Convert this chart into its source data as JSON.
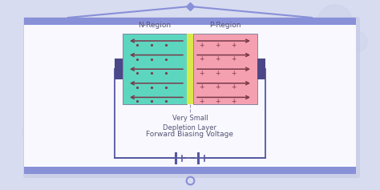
{
  "bg_color": "#d8dcf0",
  "whiteboard_color": "#f8f8fe",
  "whiteboard_border": "#c8cce8",
  "n_region_color": "#5dd6c0",
  "p_region_color": "#f5a0b0",
  "depletion_color": "#d8e84a",
  "connector_color": "#4a4888",
  "arrow_color": "#7a3a4a",
  "circuit_color": "#5558a0",
  "battery_color": "#5558a0",
  "n_label": "N-Region",
  "p_label": "P-Region",
  "depletion_label": "Very Small\nDepletion Layer",
  "voltage_label": "Forward Biasing Voltage",
  "label_color": "#555577",
  "board_bar_color": "#8890d8",
  "bubble_color": "#c0c8e8",
  "fig_width": 4.74,
  "fig_height": 2.37,
  "dpi": 100
}
